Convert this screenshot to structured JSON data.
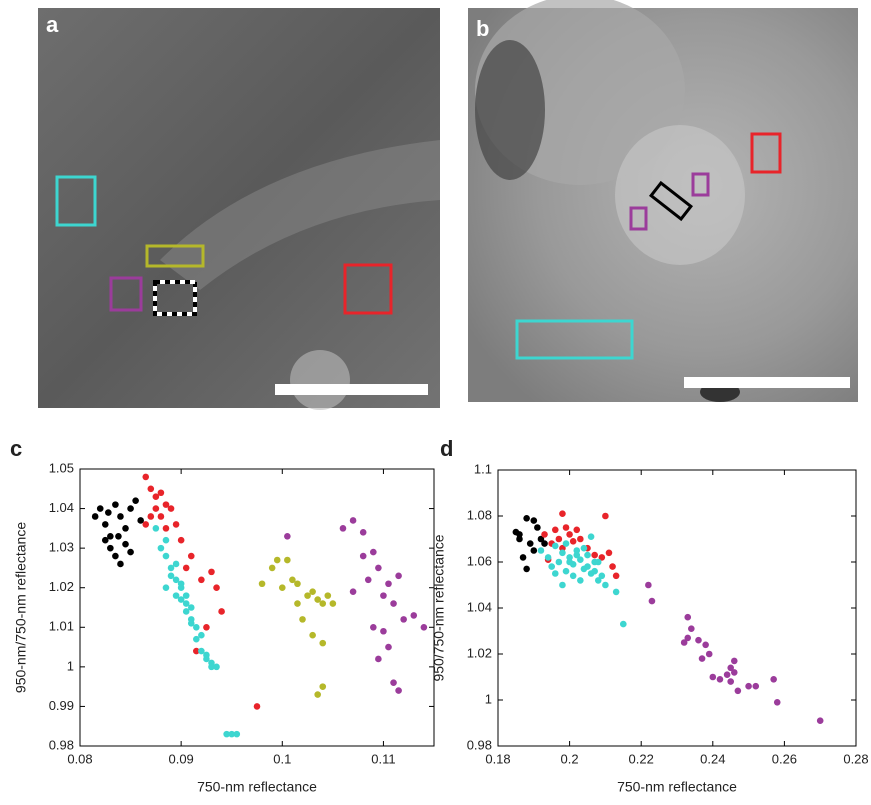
{
  "images": [
    {
      "label": "a"
    },
    {
      "label": "b"
    }
  ],
  "chart_data": [
    {
      "type": "scatter",
      "label": "c",
      "x_label": "750-nm reflectance",
      "y_label": "950-nm/750-nm reflectance",
      "xlim": [
        0.08,
        0.115
      ],
      "xticks": [
        0.08,
        0.09,
        0.1,
        0.11
      ],
      "ylim": [
        0.98,
        1.05
      ],
      "yticks": [
        0.98,
        0.99,
        1,
        1.01,
        1.02,
        1.03,
        1.04,
        1.05
      ],
      "series": [
        {
          "color": "#000000",
          "x": [
            0.0815,
            0.082,
            0.0825,
            0.083,
            0.0835,
            0.084,
            0.0845,
            0.085,
            0.0855,
            0.086,
            0.0825,
            0.083,
            0.0835,
            0.084,
            0.0845,
            0.085,
            0.0828,
            0.0838
          ],
          "values": [
            1.038,
            1.04,
            1.036,
            1.033,
            1.041,
            1.038,
            1.035,
            1.04,
            1.042,
            1.037,
            1.032,
            1.03,
            1.028,
            1.026,
            1.031,
            1.029,
            1.039,
            1.033
          ]
        },
        {
          "color": "#e8242a",
          "x": [
            0.0865,
            0.087,
            0.0875,
            0.088,
            0.0885,
            0.089,
            0.0865,
            0.087,
            0.0895,
            0.09,
            0.091,
            0.092,
            0.093,
            0.0935,
            0.094,
            0.0925,
            0.0915,
            0.0975,
            0.0905,
            0.0885,
            0.0875,
            0.088
          ],
          "values": [
            1.048,
            1.045,
            1.043,
            1.044,
            1.041,
            1.04,
            1.036,
            1.038,
            1.036,
            1.032,
            1.028,
            1.022,
            1.024,
            1.02,
            1.014,
            1.01,
            1.004,
            0.99,
            1.025,
            1.035,
            1.04,
            1.038
          ]
        },
        {
          "color": "#3dd6d0",
          "x": [
            0.0875,
            0.088,
            0.0885,
            0.089,
            0.0895,
            0.09,
            0.0905,
            0.091,
            0.0885,
            0.089,
            0.0895,
            0.09,
            0.0905,
            0.091,
            0.0915,
            0.092,
            0.0925,
            0.093,
            0.0885,
            0.0895,
            0.09,
            0.0905,
            0.091,
            0.0915,
            0.092,
            0.0925,
            0.093,
            0.0935,
            0.0945,
            0.095,
            0.0955
          ],
          "values": [
            1.035,
            1.03,
            1.028,
            1.025,
            1.022,
            1.02,
            1.018,
            1.015,
            1.02,
            1.023,
            1.018,
            1.017,
            1.014,
            1.012,
            1.01,
            1.008,
            1.003,
            1.001,
            1.032,
            1.026,
            1.021,
            1.016,
            1.011,
            1.007,
            1.004,
            1.002,
            1,
            1,
            0.983,
            0.983,
            0.983
          ]
        },
        {
          "color": "#b5b82a",
          "x": [
            0.098,
            0.099,
            0.0995,
            0.1,
            0.101,
            0.1015,
            0.102,
            0.1025,
            0.103,
            0.1035,
            0.104,
            0.1045,
            0.105,
            0.1005,
            0.1015,
            0.103,
            0.104,
            0.1035,
            0.104
          ],
          "values": [
            1.021,
            1.025,
            1.027,
            1.02,
            1.022,
            1.016,
            1.012,
            1.018,
            1.019,
            1.017,
            1.016,
            1.018,
            1.016,
            1.027,
            1.021,
            1.008,
            1.006,
            0.993,
            0.995
          ]
        },
        {
          "color": "#9b3c9b",
          "x": [
            0.1005,
            0.106,
            0.107,
            0.108,
            0.108,
            0.1085,
            0.109,
            0.1095,
            0.11,
            0.1105,
            0.111,
            0.1115,
            0.112,
            0.113,
            0.114,
            0.107,
            0.109,
            0.1105,
            0.111,
            0.1115,
            0.1095,
            0.11
          ],
          "values": [
            1.033,
            1.035,
            1.037,
            1.034,
            1.028,
            1.022,
            1.029,
            1.025,
            1.018,
            1.021,
            1.016,
            1.023,
            1.012,
            1.013,
            1.01,
            1.019,
            1.01,
            1.005,
            0.996,
            0.994,
            1.002,
            1.009
          ]
        }
      ]
    },
    {
      "type": "scatter",
      "label": "d",
      "x_label": "750-nm reflectance",
      "y_label": "950/750-nm reflectance",
      "xlim": [
        0.18,
        0.28
      ],
      "xticks": [
        0.18,
        0.2,
        0.22,
        0.24,
        0.26,
        0.28
      ],
      "ylim": [
        0.98,
        1.1
      ],
      "yticks": [
        0.98,
        1,
        1.02,
        1.04,
        1.06,
        1.08,
        1.1
      ],
      "series": [
        {
          "color": "#000000",
          "x": [
            0.185,
            0.186,
            0.187,
            0.188,
            0.189,
            0.19,
            0.191,
            0.192,
            0.188,
            0.186,
            0.19,
            0.193
          ],
          "values": [
            1.073,
            1.07,
            1.062,
            1.079,
            1.068,
            1.078,
            1.075,
            1.07,
            1.057,
            1.072,
            1.065,
            1.068
          ]
        },
        {
          "color": "#e8242a",
          "x": [
            0.193,
            0.195,
            0.196,
            0.197,
            0.198,
            0.199,
            0.2,
            0.201,
            0.202,
            0.203,
            0.205,
            0.207,
            0.209,
            0.21,
            0.212,
            0.213,
            0.211,
            0.194,
            0.198
          ],
          "values": [
            1.072,
            1.068,
            1.074,
            1.07,
            1.081,
            1.075,
            1.072,
            1.069,
            1.074,
            1.07,
            1.066,
            1.063,
            1.062,
            1.08,
            1.058,
            1.054,
            1.064,
            1.061,
            1.066
          ]
        },
        {
          "color": "#3dd6d0",
          "x": [
            0.192,
            0.194,
            0.195,
            0.196,
            0.197,
            0.198,
            0.199,
            0.2,
            0.201,
            0.202,
            0.203,
            0.204,
            0.205,
            0.206,
            0.207,
            0.208,
            0.199,
            0.201,
            0.203,
            0.205,
            0.207,
            0.209,
            0.21,
            0.196,
            0.198,
            0.2,
            0.202,
            0.204,
            0.213,
            0.215,
            0.206,
            0.208
          ],
          "values": [
            1.065,
            1.062,
            1.058,
            1.067,
            1.06,
            1.064,
            1.056,
            1.062,
            1.059,
            1.065,
            1.061,
            1.057,
            1.063,
            1.055,
            1.06,
            1.052,
            1.068,
            1.054,
            1.052,
            1.058,
            1.056,
            1.054,
            1.05,
            1.055,
            1.05,
            1.06,
            1.063,
            1.066,
            1.047,
            1.033,
            1.071,
            1.06
          ]
        },
        {
          "color": "#9b3c9b",
          "x": [
            0.222,
            0.223,
            0.233,
            0.234,
            0.232,
            0.236,
            0.238,
            0.237,
            0.239,
            0.24,
            0.242,
            0.244,
            0.245,
            0.246,
            0.245,
            0.247,
            0.25,
            0.252,
            0.257,
            0.258,
            0.27,
            0.233,
            0.246
          ],
          "values": [
            1.05,
            1.043,
            1.036,
            1.031,
            1.025,
            1.026,
            1.024,
            1.018,
            1.02,
            1.01,
            1.009,
            1.011,
            1.014,
            1.017,
            1.008,
            1.004,
            1.006,
            1.006,
            1.009,
            0.999,
            0.991,
            1.027,
            1.012
          ]
        }
      ]
    }
  ]
}
